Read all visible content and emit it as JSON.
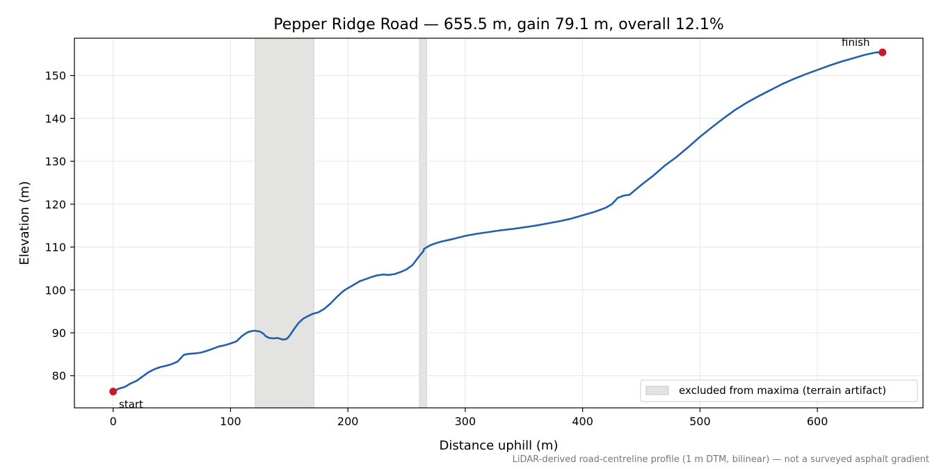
{
  "chart_data": {
    "type": "line",
    "title": "Pepper Ridge Road — 655.5 m, gain 79.1 m, overall 12.1%",
    "xlabel": "Distance uphill (m)",
    "ylabel": "Elevation (m)",
    "xlim": [
      -33,
      690
    ],
    "ylim": [
      72.5,
      158.7
    ],
    "xticks": [
      0,
      100,
      200,
      300,
      400,
      500,
      600
    ],
    "yticks": [
      80,
      90,
      100,
      110,
      120,
      130,
      140,
      150
    ],
    "grid": true,
    "legend": {
      "placement": "bottom-right",
      "entries": [
        "excluded from maxima (terrain artifact)"
      ]
    },
    "excluded_ranges": [
      [
        121,
        171
      ],
      [
        261,
        267
      ]
    ],
    "series": [
      {
        "x": [
          0,
          5,
          10,
          15,
          20,
          25,
          30,
          35,
          40,
          45,
          50,
          55,
          58,
          60,
          62,
          65,
          70,
          75,
          80,
          85,
          90,
          95,
          100,
          105,
          110,
          115,
          120,
          125,
          128,
          130,
          133,
          137,
          140,
          145,
          148,
          150,
          152,
          155,
          158,
          162,
          166,
          170,
          175,
          180,
          185,
          190,
          195,
          198,
          200,
          205,
          210,
          215,
          220,
          225,
          230,
          235,
          240,
          245,
          250,
          255,
          260,
          262,
          264,
          265,
          270,
          275,
          280,
          285,
          290,
          300,
          310,
          320,
          330,
          340,
          350,
          360,
          370,
          380,
          390,
          400,
          410,
          420,
          425,
          430,
          435,
          440,
          450,
          460,
          470,
          480,
          490,
          500,
          510,
          520,
          530,
          540,
          550,
          560,
          570,
          580,
          590,
          600,
          610,
          620,
          630,
          640,
          650,
          655.5
        ],
        "y": [
          76.3,
          77.0,
          77.4,
          78.2,
          78.8,
          79.8,
          80.8,
          81.5,
          82.0,
          82.3,
          82.7,
          83.3,
          84.2,
          84.8,
          85.0,
          85.1,
          85.2,
          85.4,
          85.8,
          86.3,
          86.8,
          87.1,
          87.5,
          88.0,
          89.3,
          90.2,
          90.5,
          90.3,
          89.8,
          89.2,
          88.8,
          88.7,
          88.8,
          88.4,
          88.6,
          89.2,
          90.0,
          91.2,
          92.3,
          93.3,
          93.9,
          94.4,
          94.8,
          95.6,
          96.8,
          98.2,
          99.5,
          100.1,
          100.4,
          101.2,
          102.0,
          102.5,
          103.0,
          103.4,
          103.6,
          103.5,
          103.7,
          104.2,
          104.8,
          105.8,
          107.6,
          108.3,
          108.9,
          109.6,
          110.4,
          110.9,
          111.3,
          111.6,
          111.9,
          112.6,
          113.1,
          113.5,
          113.9,
          114.2,
          114.6,
          115.0,
          115.5,
          116.0,
          116.6,
          117.4,
          118.2,
          119.2,
          120.0,
          121.5,
          122.0,
          122.2,
          124.5,
          126.6,
          129.0,
          131.0,
          133.3,
          135.7,
          137.9,
          140.0,
          142.0,
          143.7,
          145.2,
          146.6,
          148.0,
          149.2,
          150.3,
          151.3,
          152.3,
          153.2,
          154.0,
          154.8,
          155.4,
          155.4
        ]
      }
    ],
    "annotations": [
      {
        "text": "start",
        "x": 0,
        "y": 76.3
      },
      {
        "text": "finish",
        "x": 655.5,
        "y": 155.4
      }
    ],
    "caption": "LiDAR-derived road-centreline profile (1 m DTM, bilinear) — not a surveyed asphalt gradient"
  },
  "colors": {
    "line": "#1f5fad",
    "marker": "#c51b2a",
    "excluded_fill": "#e3e3e2",
    "grid": "#e6e6e6"
  }
}
